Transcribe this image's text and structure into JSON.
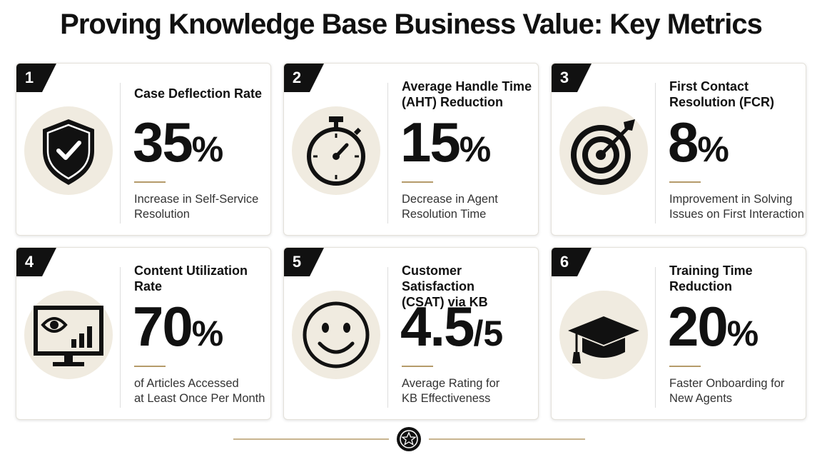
{
  "header": {
    "title": "Proving Knowledge Base Business Value: Key Metrics"
  },
  "cards": [
    {
      "number": "1",
      "title": [
        "Case Deflection Rate"
      ],
      "value": "35",
      "unit": "%",
      "description": [
        "Increase in Self-Service",
        "Resolution"
      ]
    },
    {
      "number": "2",
      "title": [
        "Average Handle Time",
        "(AHT) Reduction"
      ],
      "value": "15",
      "unit": "%",
      "description": [
        "Decrease in Agent",
        "Resolution Time"
      ]
    },
    {
      "number": "3",
      "title": [
        "First Contact",
        "Resolution (FCR)"
      ],
      "value": "8",
      "unit": "%",
      "description": [
        "Improvement in Solving",
        "Issues on First Interaction"
      ]
    },
    {
      "number": "4",
      "title": [
        "Content Utilization",
        "Rate"
      ],
      "value": "70",
      "unit": "%",
      "description": [
        "of Articles Accessed",
        "at Least Once Per Month"
      ]
    },
    {
      "number": "5",
      "title": [
        "Customer Satisfaction",
        "(CSAT) via KB"
      ],
      "value": "4.5",
      "unit": "/5",
      "description": [
        "Average Rating for",
        "KB Effectiveness"
      ]
    },
    {
      "number": "6",
      "title": [
        "Training Time",
        "Reduction"
      ],
      "value": "20",
      "unit": "%",
      "description": [
        "Faster Onboarding for",
        "New Agents"
      ]
    }
  ]
}
